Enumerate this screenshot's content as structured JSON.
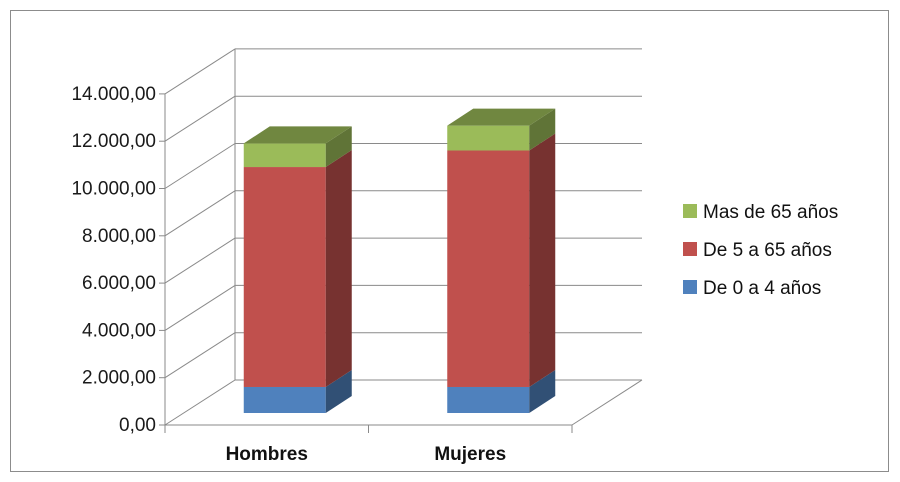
{
  "chart_data": {
    "type": "bar",
    "stacked": true,
    "style": "3d-column",
    "categories": [
      "Hombres",
      "Mujeres"
    ],
    "series": [
      {
        "name": "De 0 a 4 años",
        "values": [
          1100,
          1100
        ],
        "color": "#4f81bd"
      },
      {
        "name": "De 5 a 65 años",
        "values": [
          9300,
          10000
        ],
        "color": "#c0504d"
      },
      {
        "name": "Mas de 65 años",
        "values": [
          1000,
          1050
        ],
        "color": "#9bbb59"
      }
    ],
    "y_ticks": [
      "0,00",
      "2.000,00",
      "4.000,00",
      "6.000,00",
      "8.000,00",
      "10.000,00",
      "12.000,00",
      "14.000,00"
    ],
    "ylim": [
      0,
      14000
    ],
    "grid": true,
    "legend_position": "right",
    "legend_order": [
      "Mas de 65 años",
      "De 5 a 65 años",
      "De 0 a 4 años"
    ]
  }
}
